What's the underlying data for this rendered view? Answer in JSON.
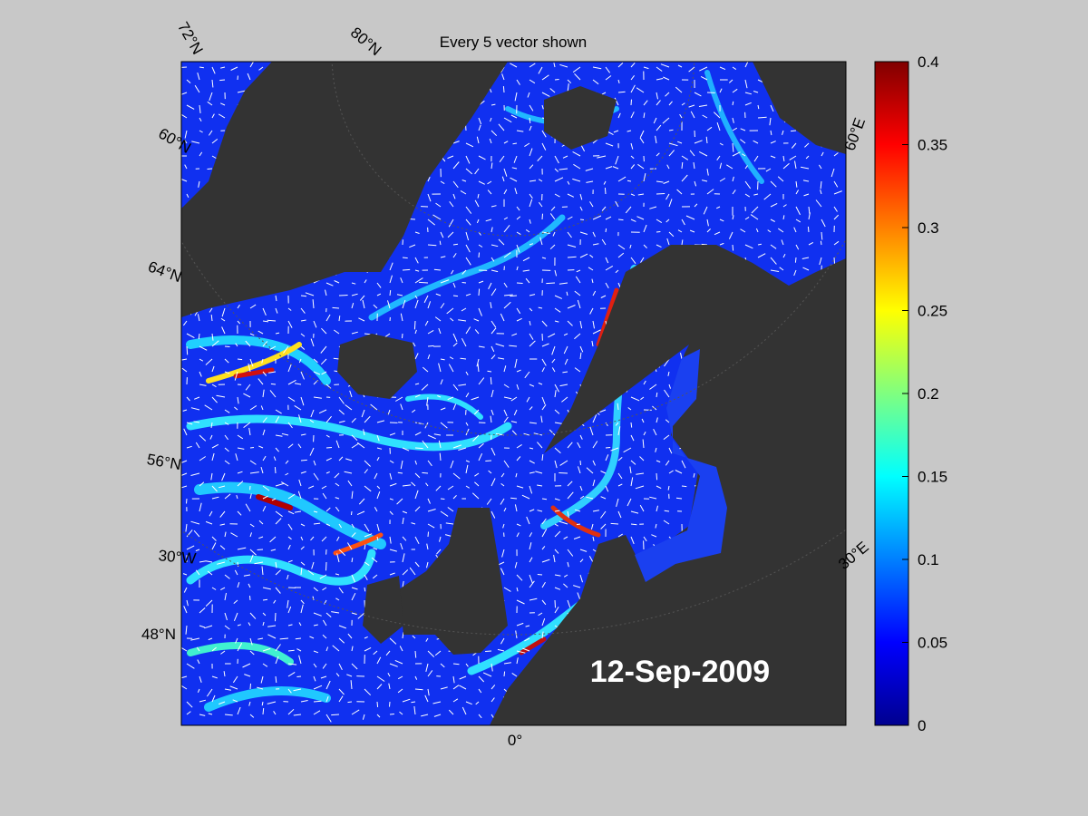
{
  "header": {
    "title": "Every 5 vector shown"
  },
  "map": {
    "date_label": "12-Sep-2009",
    "graticule_labels": [
      "72°N",
      "80°N",
      "60°N",
      "64°N",
      "56°N",
      "30°W",
      "48°N",
      "0°",
      "30°E",
      "60°E"
    ]
  },
  "colorbar": {
    "lim": [
      0,
      0.4
    ],
    "ticks": [
      0,
      0.05,
      0.1,
      0.15,
      0.2,
      0.25,
      0.3,
      0.35,
      0.4
    ]
  }
}
